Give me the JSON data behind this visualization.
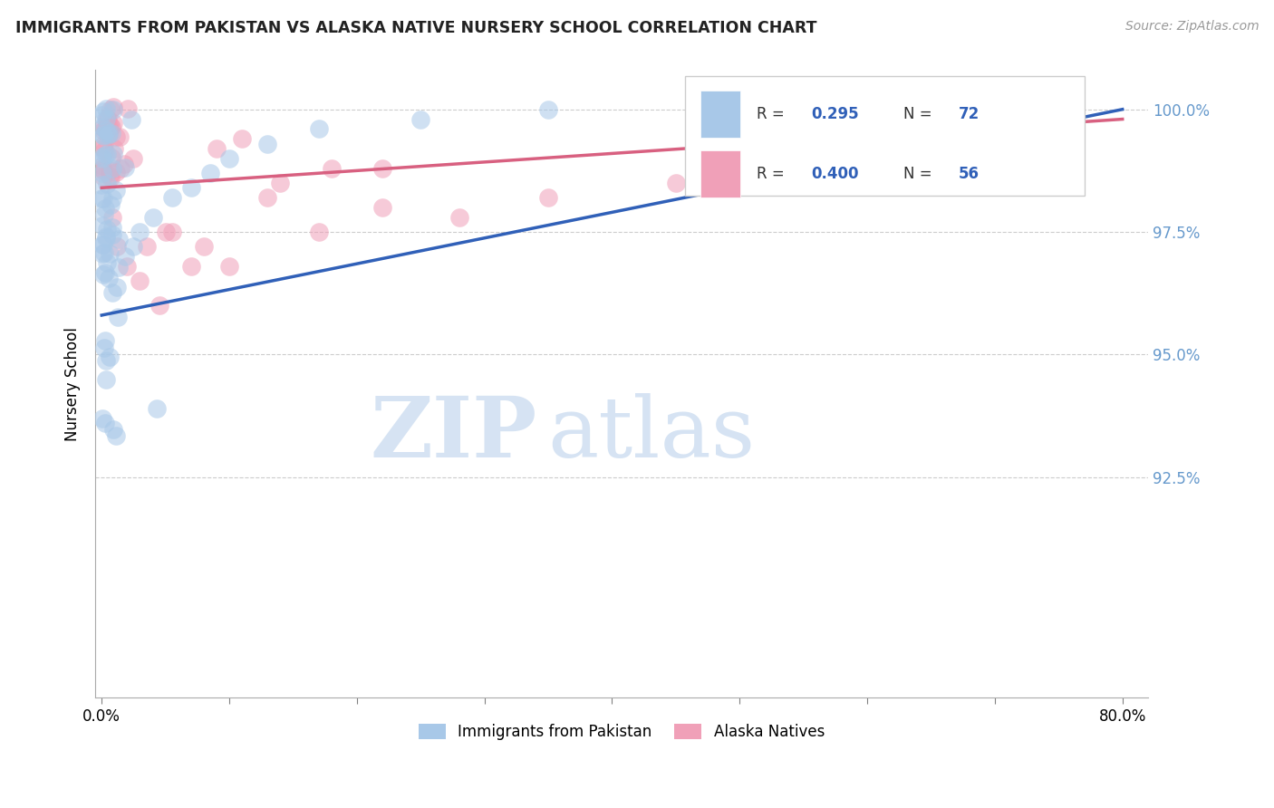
{
  "title": "IMMIGRANTS FROM PAKISTAN VS ALASKA NATIVE NURSERY SCHOOL CORRELATION CHART",
  "source": "Source: ZipAtlas.com",
  "ylabel": "Nursery School",
  "yticks_labels": [
    "100.0%",
    "97.5%",
    "95.0%",
    "92.5%"
  ],
  "ytick_vals": [
    1.0,
    0.975,
    0.95,
    0.925
  ],
  "xlim": [
    0.0,
    0.8
  ],
  "ylim": [
    0.88,
    1.008
  ],
  "blue_color": "#A8C8E8",
  "pink_color": "#F0A0B8",
  "blue_line_color": "#3060B8",
  "pink_line_color": "#D86080",
  "ytick_color": "#6699CC",
  "watermark_color": "#C5D8EE",
  "legend_label_blue": "Immigrants from Pakistan",
  "legend_label_pink": "Alaska Natives"
}
